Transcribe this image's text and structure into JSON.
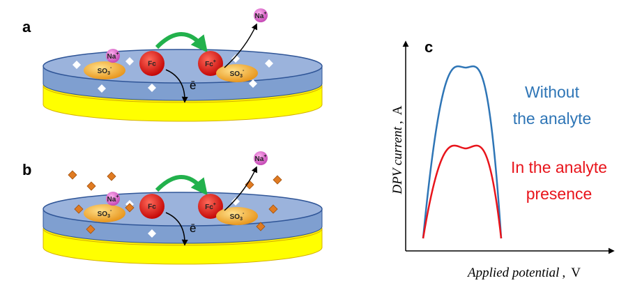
{
  "panels": [
    {
      "label": "a",
      "na_left": {
        "text": "Na",
        "sup": "+"
      },
      "so3_left": {
        "text": "SO",
        "sub": "3",
        "sup": "-"
      },
      "fc": "Fc",
      "fc_plus": {
        "text": "Fc",
        "sup": "+"
      },
      "so3_right": {
        "text": "SO",
        "sub": "3",
        "sup": "-"
      },
      "na_right": {
        "text": "Na",
        "sup": "+"
      },
      "electron": "ē"
    },
    {
      "label": "b",
      "na_left": {
        "text": "Na",
        "sup": "+"
      },
      "so3_left": {
        "text": "SO",
        "sub": "3",
        "sup": "-"
      },
      "fc": "Fc",
      "fc_plus": {
        "text": "Fc",
        "sup": "+"
      },
      "so3_right": {
        "text": "SO",
        "sub": "3",
        "sup": "-"
      },
      "na_right": {
        "text": "Na",
        "sup": "+"
      },
      "electron": "ē"
    }
  ],
  "graph": {
    "label": "c",
    "y_axis": {
      "name": "DPV current",
      "sep": ",",
      "unit": "A"
    },
    "x_axis": {
      "name": "Applied potential",
      "sep": ",",
      "unit": "V"
    },
    "curves": [
      {
        "name": [
          "Without",
          "the analyte"
        ],
        "color": "#2e75b6"
      },
      {
        "name": [
          "In the analyte",
          "presence"
        ],
        "color": "#e8141b"
      }
    ]
  }
}
